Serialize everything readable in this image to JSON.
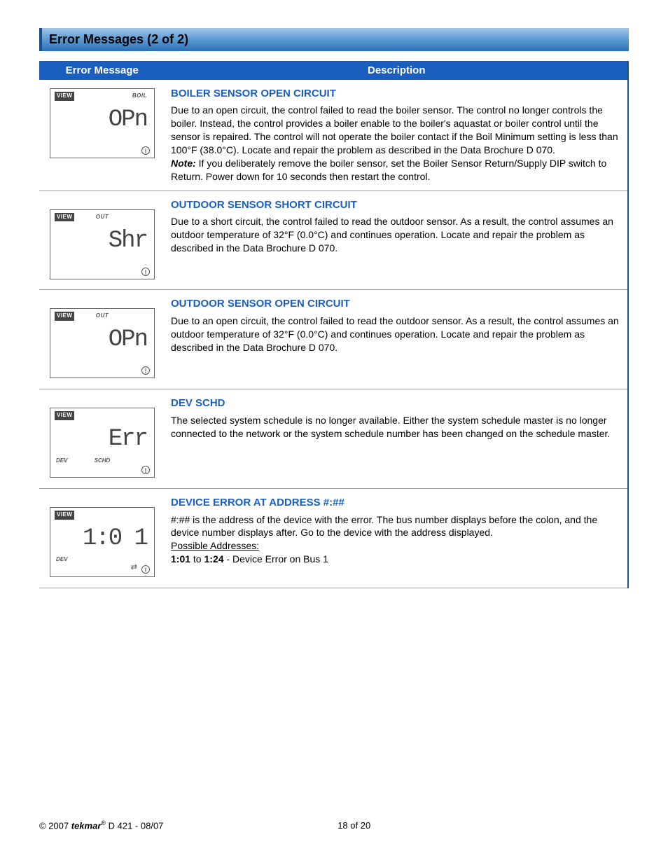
{
  "section": {
    "title": "Error Messages (2 of 2)"
  },
  "table": {
    "headers": {
      "col1": "Error Message",
      "col2": "Description"
    },
    "rows": [
      {
        "lcd": {
          "view": "VIEW",
          "top_right": "BOIL",
          "top_center": "",
          "big": "OPn",
          "bottom_left": "",
          "bottom_center": "",
          "arrows": ""
        },
        "title": "BOILER SENSOR OPEN CIRCUIT",
        "body": "Due to an open circuit, the control failed to read the boiler sensor. The control no longer controls the boiler. Instead, the control provides a boiler enable to the boiler's aquastat or boiler control until the sensor is repaired. The control will not operate the boiler contact if the Boil Minimum setting is less than 100°F (38.0°C). Locate and repair the problem as described in the Data Brochure D 070.",
        "note_label": "Note:",
        "note": " If you deliberately remove the boiler sensor, set the Boiler Sensor Return/Supply DIP switch to Return. Power down for 10 seconds then restart the control."
      },
      {
        "lcd": {
          "view": "VIEW",
          "top_right": "",
          "top_center": "OUT",
          "big": "Shr",
          "bottom_left": "",
          "bottom_center": "",
          "arrows": ""
        },
        "title": "OUTDOOR SENSOR SHORT CIRCUIT",
        "body": "Due to a short circuit, the control failed to read the outdoor sensor. As a result, the control assumes an outdoor temperature of 32°F (0.0°C) and continues operation. Locate and repair the problem as described in the Data Brochure D 070."
      },
      {
        "lcd": {
          "view": "VIEW",
          "top_right": "",
          "top_center": "OUT",
          "big": "OPn",
          "bottom_left": "",
          "bottom_center": "",
          "arrows": ""
        },
        "title": "OUTDOOR SENSOR OPEN CIRCUIT",
        "body": "Due to an open circuit, the control failed to read the outdoor sensor. As a result, the control assumes an outdoor temperature of 32°F (0.0°C) and continues operation. Locate and repair the problem as described in the Data Brochure D 070."
      },
      {
        "lcd": {
          "view": "VIEW",
          "top_right": "",
          "top_center": "",
          "big": "Err",
          "bottom_left": "DEV",
          "bottom_center": "SCHD",
          "arrows": ""
        },
        "title": "DEV SCHD",
        "body": "The selected system schedule is no longer available. Either the system schedule master is no longer connected to the network or the system schedule number has been changed on the schedule master."
      },
      {
        "lcd": {
          "view": "VIEW",
          "top_right": "",
          "top_center": "",
          "big": "1:0 1",
          "bottom_left": "DEV",
          "bottom_center": "",
          "arrows": "⇄"
        },
        "title": "DEVICE ERROR AT ADDRESS #:##",
        "body": "#:## is the address of the device with the error. The bus number displays before the colon, and the device number displays after. Go to the device with the address displayed.",
        "addr_label": "Possible Addresses:",
        "addr_line_bold1": "1:01",
        "addr_line_mid": " to ",
        "addr_line_bold2": "1:24",
        "addr_line_rest": " - Device Error on Bus 1"
      }
    ]
  },
  "footer": {
    "copyright_prefix": "© 2007 ",
    "brand": "tekmar",
    "doc": " D 421 - 08/07",
    "page": "18 of 20"
  },
  "colors": {
    "header_gradient_top": "#a2c4e6",
    "header_gradient_bottom": "#2d6eb5",
    "table_header_bg": "#1a5fbf",
    "title_color": "#1a5fbf",
    "border_right": "#1a4f8a"
  }
}
